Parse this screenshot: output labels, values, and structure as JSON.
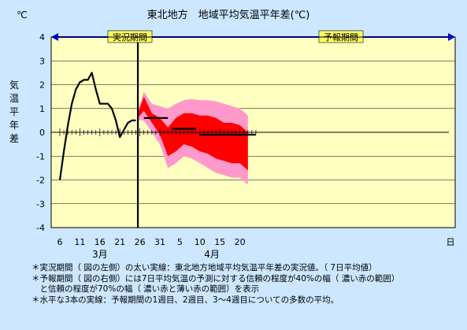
{
  "chart_data": {
    "type": "line",
    "title": "東北地方　地域平均気温平年差(℃)",
    "unit_label": "℃",
    "ylabel": "気温平年差",
    "ylim": [
      -4,
      4
    ],
    "yticks": [
      4,
      3,
      2,
      1,
      0,
      -1,
      -2,
      -3,
      -4
    ],
    "xticks": [
      {
        "label": "6",
        "day": 6
      },
      {
        "label": "11",
        "day": 11
      },
      {
        "label": "16",
        "day": 16
      },
      {
        "label": "21",
        "day": 21
      },
      {
        "label": "26",
        "day": 26
      },
      {
        "label": "31",
        "day": 31
      },
      {
        "label": "5",
        "day": 36
      },
      {
        "label": "10",
        "day": 41
      },
      {
        "label": "15",
        "day": 46
      },
      {
        "label": "20",
        "day": 51
      }
    ],
    "x_unit": "日",
    "x_start_day": 6,
    "x_end_day": 55,
    "months": [
      {
        "label": "3月",
        "day": 16
      },
      {
        "label": "4月",
        "day": 44
      }
    ],
    "periods": {
      "observed_label": "実況期間",
      "forecast_label": "予報期間",
      "boundary_day": 25.5,
      "observed_range": [
        6,
        25.5
      ],
      "forecast_range": [
        25.5,
        56
      ]
    },
    "colors": {
      "plot_bg": "#ffffc0",
      "observed_line": "#000000",
      "band70": "#ff99cc",
      "band40": "#ff0000",
      "mean_line": "#000000",
      "arrow": "#0000ff",
      "period_label_bg": "#ffff66"
    },
    "observed": {
      "x": [
        6,
        7,
        8,
        9,
        10,
        11,
        12,
        13,
        14,
        15,
        16,
        17,
        18,
        19,
        20,
        21,
        22,
        23,
        24,
        25
      ],
      "y": [
        -2.0,
        -0.8,
        0.3,
        1.2,
        1.8,
        2.1,
        2.2,
        2.2,
        2.5,
        1.8,
        1.2,
        1.2,
        1.2,
        1.0,
        0.5,
        -0.2,
        0.1,
        0.4,
        0.5,
        0.5
      ]
    },
    "forecast_band70": {
      "x": [
        25.5,
        27,
        29,
        31,
        33,
        35,
        37,
        39,
        41,
        43,
        45,
        47,
        49,
        51,
        53
      ],
      "upper": [
        0.9,
        1.7,
        1.2,
        1.1,
        1.0,
        1.2,
        1.35,
        1.4,
        1.35,
        1.35,
        1.3,
        1.2,
        1.1,
        1.0,
        0.7
      ],
      "lower": [
        0.5,
        0.5,
        0.0,
        -0.5,
        -1.5,
        -1.3,
        -1.0,
        -1.1,
        -1.3,
        -1.5,
        -1.7,
        -1.8,
        -1.9,
        -1.9,
        -2.2
      ]
    },
    "forecast_band40": {
      "x": [
        25.5,
        27,
        29,
        31,
        33,
        35,
        37,
        39,
        41,
        43,
        45,
        47,
        49,
        51,
        53
      ],
      "upper": [
        0.8,
        1.5,
        0.8,
        0.6,
        0.2,
        0.6,
        0.8,
        0.8,
        0.7,
        0.7,
        0.6,
        0.4,
        0.4,
        0.3,
        0.0
      ],
      "lower": [
        0.6,
        0.9,
        0.4,
        -0.1,
        -1.0,
        -0.8,
        -0.5,
        -0.6,
        -0.8,
        -0.9,
        -1.1,
        -1.2,
        -1.3,
        -1.3,
        -1.6
      ]
    },
    "weekly_means": [
      {
        "label": "1週目",
        "x": [
          27,
          33
        ],
        "y": 0.6
      },
      {
        "label": "2週目",
        "x": [
          34,
          40
        ],
        "y": 0.15
      },
      {
        "label": "3〜4週目",
        "x": [
          41,
          55
        ],
        "y": -0.1
      }
    ]
  },
  "notes": [
    "＊実況期間（ 図の左側）の太い実線：東北地方地域平均気温平年差の実況値。（ 7日平均値）",
    "＊予報期間（ 図の右側）には7日平均気温の予測に対する信頼の程度が40%の幅（ 濃い赤の範囲）",
    "　と信頼の程度が70%の幅（ 濃い赤と薄い赤の範囲）を表示",
    "＊水平な3本の実線：予報期間の1週目、2週目、3〜4週目についての多数の平均。"
  ]
}
